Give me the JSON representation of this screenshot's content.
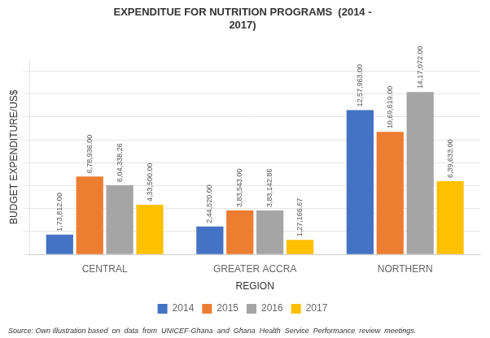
{
  "chart_data": {
    "type": "bar",
    "title": "EXPENDITUE FOR NUTRITION PROGRAMS  (2014 -\n2017)",
    "xlabel": "REGION",
    "ylabel": "BUDGET EXPENDITURE/US$",
    "categories": [
      "CENTRAL",
      "GREATER ACCRA",
      "NORTHERN"
    ],
    "series": [
      {
        "name": "2014",
        "color": "#4472C4",
        "values": [
          173812.0,
          244520.0,
          1257963.0
        ],
        "value_labels": [
          "1,73,812.00",
          "2,44,520.00",
          "12,57,963.00"
        ]
      },
      {
        "name": "2015",
        "color": "#ED7D31",
        "values": [
          678936.0,
          383543.0,
          1069619.0
        ],
        "value_labels": [
          "6,78,936.00",
          "3,83,543.00",
          "10,69,619.00"
        ]
      },
      {
        "name": "2016",
        "color": "#A5A5A5",
        "values": [
          604338.26,
          383142.86,
          1417072.0
        ],
        "value_labels": [
          "6,04,338.26",
          "3,83,142.86",
          "14,17,072.00"
        ]
      },
      {
        "name": "2017",
        "color": "#FFC000",
        "values": [
          433500.0,
          127166.67,
          639633.0
        ],
        "value_labels": [
          "4,33,500.00",
          "1,27,166.67",
          "6,39,633.00"
        ]
      }
    ],
    "ylim": [
      0,
      1700000
    ],
    "yticks": [
      0,
      200000,
      400000,
      600000,
      800000,
      1000000,
      1200000,
      1400000,
      1600000
    ],
    "grid": true,
    "legend": "bottom",
    "data_labels": true,
    "tick_labels": "x",
    "annotations": [
      "Source: Own Illustration based  on  data  from  UNICEF-Ghana  and  Ghana  Health  Service  Performance  review  meetings."
    ]
  }
}
